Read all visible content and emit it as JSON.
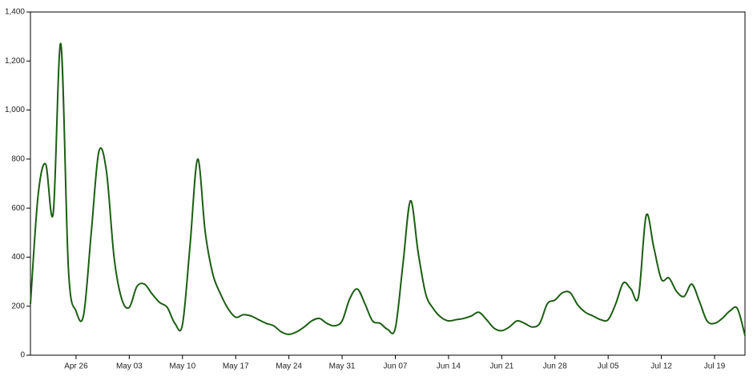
{
  "chart_data": {
    "type": "line",
    "categories": [
      null,
      null,
      null,
      null,
      null,
      null,
      "Apr 26",
      null,
      null,
      null,
      null,
      null,
      null,
      "May 03",
      null,
      null,
      null,
      null,
      null,
      null,
      "May 10",
      null,
      null,
      null,
      null,
      null,
      null,
      "May 17",
      null,
      null,
      null,
      null,
      null,
      null,
      "May 24",
      null,
      null,
      null,
      null,
      null,
      null,
      "May 31",
      null,
      null,
      null,
      null,
      null,
      null,
      "Jun 07",
      null,
      null,
      null,
      null,
      null,
      null,
      "Jun 14",
      null,
      null,
      null,
      null,
      null,
      null,
      "Jun 21",
      null,
      null,
      null,
      null,
      null,
      null,
      "Jun 28",
      null,
      null,
      null,
      null,
      null,
      null,
      "Jul 05",
      null,
      null,
      null,
      null,
      null,
      null,
      "Jul 12",
      null,
      null,
      null,
      null,
      null,
      null,
      "Jul 19",
      null,
      null,
      null,
      null
    ],
    "values": [
      209,
      650,
      780,
      580,
      1270,
      350,
      180,
      165,
      500,
      830,
      750,
      400,
      230,
      195,
      280,
      290,
      250,
      215,
      195,
      130,
      125,
      450,
      800,
      500,
      330,
      250,
      190,
      155,
      165,
      160,
      145,
      130,
      120,
      95,
      85,
      95,
      115,
      140,
      150,
      130,
      120,
      140,
      230,
      270,
      210,
      140,
      130,
      105,
      110,
      370,
      630,
      420,
      250,
      190,
      155,
      140,
      145,
      150,
      160,
      175,
      145,
      110,
      100,
      115,
      140,
      130,
      115,
      130,
      210,
      225,
      255,
      255,
      205,
      175,
      160,
      145,
      145,
      210,
      295,
      270,
      240,
      570,
      440,
      310,
      315,
      260,
      240,
      290,
      220,
      140,
      130,
      150,
      180,
      190,
      80
    ],
    "color": "#1b5e12",
    "ylim": [
      0,
      1400
    ],
    "yticks": [
      0,
      200,
      400,
      600,
      800,
      {
        "value": 1000,
        "label": "1,000"
      },
      {
        "value": 1200,
        "label": "1,200"
      },
      {
        "value": 1400,
        "label": "1,400"
      }
    ]
  }
}
